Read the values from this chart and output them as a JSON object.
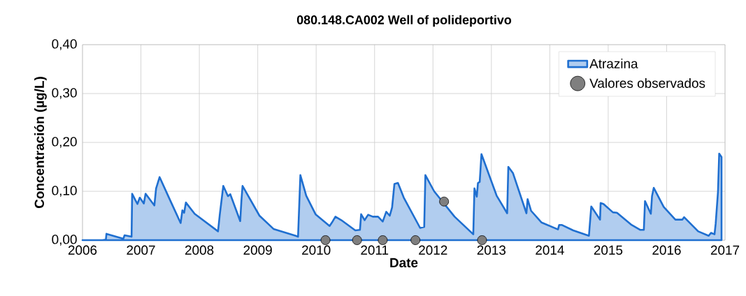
{
  "chart_data": {
    "type": "area",
    "title": "080.148.CA002 Well of polideportivo",
    "xlabel": "Date",
    "ylabel": "Concentración (µg/L)",
    "xlim": [
      2006,
      2017
    ],
    "xticks": [
      2006,
      2007,
      2008,
      2009,
      2010,
      2011,
      2012,
      2013,
      2014,
      2015,
      2016,
      2017
    ],
    "ylim": [
      0,
      0.4
    ],
    "yticks": [
      {
        "value": 0,
        "label": "0,00"
      },
      {
        "value": 0.1,
        "label": "0,10"
      },
      {
        "value": 0.2,
        "label": "0,20"
      },
      {
        "value": 0.3,
        "label": "0,30"
      },
      {
        "value": 0.4,
        "label": "0,40"
      }
    ],
    "grid": true,
    "legend": "top right",
    "series": [
      {
        "name": "Atrazina",
        "color": "#1f6fd0",
        "marker": "none",
        "x": [
          2006.0,
          2006.34,
          2006.4,
          2006.41,
          2006.7,
          2006.72,
          2006.84,
          2006.85,
          2006.9,
          2006.94,
          2006.98,
          2007.05,
          2007.08,
          2007.23,
          2007.26,
          2007.32,
          2007.48,
          2007.68,
          2007.71,
          2007.74,
          2007.77,
          2007.92,
          2008.32,
          2008.35,
          2008.41,
          2008.49,
          2008.53,
          2008.7,
          2008.72,
          2008.74,
          2009.03,
          2009.27,
          2009.65,
          2009.69,
          2009.73,
          2009.83,
          2009.99,
          2010.23,
          2010.27,
          2010.33,
          2010.43,
          2010.67,
          2010.75,
          2010.77,
          2010.83,
          2010.89,
          2010.97,
          2011.06,
          2011.14,
          2011.2,
          2011.26,
          2011.3,
          2011.34,
          2011.4,
          2011.5,
          2011.78,
          2011.85,
          2011.87,
          2012.02,
          2012.37,
          2012.69,
          2012.71,
          2012.75,
          2012.77,
          2012.8,
          2012.83,
          2013.09,
          2013.13,
          2013.27,
          2013.29,
          2013.37,
          2013.6,
          2013.62,
          2013.68,
          2013.86,
          2014.14,
          2014.16,
          2014.21,
          2014.4,
          2014.67,
          2014.71,
          2014.86,
          2014.87,
          2014.92,
          2015.08,
          2015.15,
          2015.39,
          2015.55,
          2015.61,
          2015.63,
          2015.73,
          2015.75,
          2015.78,
          2015.95,
          2016.15,
          2016.27,
          2016.3,
          2016.54,
          2016.72,
          2016.76,
          2016.82,
          2016.84,
          2016.88,
          2016.9,
          2016.94
        ],
        "values": [
          0,
          0,
          0.001,
          0.013,
          0.003,
          0.01,
          0.007,
          0.095,
          0.083,
          0.074,
          0.087,
          0.075,
          0.095,
          0.071,
          0.106,
          0.129,
          0.087,
          0.035,
          0.061,
          0.056,
          0.077,
          0.054,
          0.018,
          0.052,
          0.111,
          0.09,
          0.094,
          0.039,
          0.08,
          0.111,
          0.05,
          0.023,
          0.009,
          0.007,
          0.133,
          0.091,
          0.053,
          0.029,
          0.036,
          0.048,
          0.041,
          0.02,
          0.021,
          0.053,
          0.041,
          0.052,
          0.048,
          0.048,
          0.038,
          0.058,
          0.05,
          0.067,
          0.115,
          0.117,
          0.087,
          0.025,
          0.027,
          0.133,
          0.1,
          0.048,
          0.012,
          0.106,
          0.089,
          0.117,
          0.119,
          0.176,
          0.091,
          0.083,
          0.055,
          0.15,
          0.137,
          0.055,
          0.084,
          0.06,
          0.036,
          0.022,
          0.031,
          0.031,
          0.02,
          0.009,
          0.069,
          0.042,
          0.076,
          0.074,
          0.057,
          0.056,
          0.032,
          0.021,
          0.021,
          0.08,
          0.054,
          0.09,
          0.107,
          0.068,
          0.042,
          0.042,
          0.047,
          0.018,
          0.009,
          0.015,
          0.012,
          0.034,
          0.1,
          0.177,
          0.17
        ]
      },
      {
        "name": "Valores observados",
        "type": "scatter",
        "color": "#7f7f7f",
        "marker": "circle",
        "x": [
          2010.16,
          2010.7,
          2011.14,
          2011.7,
          2012.19,
          2012.84
        ],
        "values": [
          0,
          0,
          0,
          0,
          0.079,
          0
        ]
      }
    ]
  }
}
